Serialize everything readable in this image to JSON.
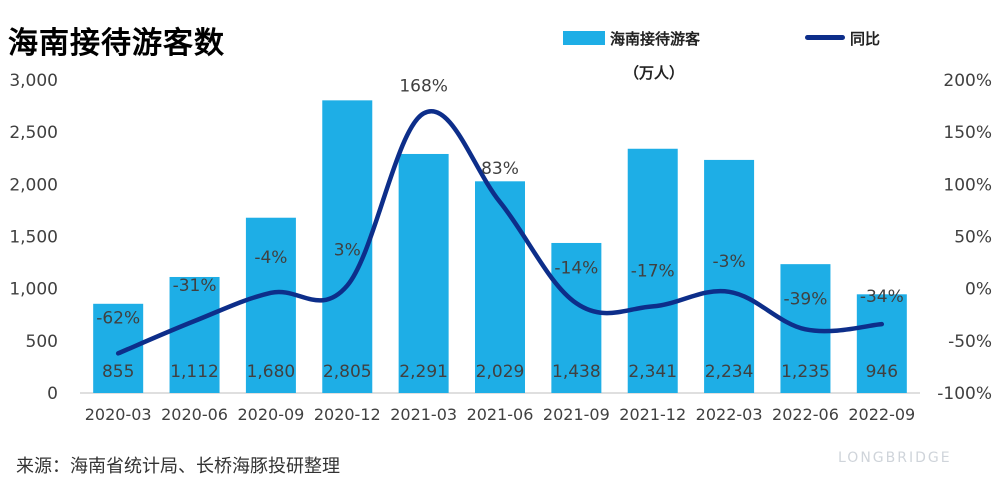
{
  "title": "海南接待游客数",
  "source": "来源：海南省统计局、长桥海豚投研整理",
  "watermark_logo": "LONGBRIDGE",
  "legend": {
    "bar_label": "海南接待游客",
    "bar_unit": "（万人）",
    "line_label": "同比"
  },
  "colors": {
    "bar": "#1EAEE6",
    "line": "#0D2E8A",
    "axis": "#BFBFBF",
    "text": "#404040"
  },
  "chart_data": {
    "type": "bar",
    "categories": [
      "2020-03",
      "2020-06",
      "2020-09",
      "2020-12",
      "2021-03",
      "2021-06",
      "2021-09",
      "2021-12",
      "2022-03",
      "2022-06",
      "2022-09"
    ],
    "series": [
      {
        "name": "海南接待游客",
        "type": "bar",
        "axis": "left",
        "values": [
          855,
          1112,
          1680,
          2805,
          2291,
          2029,
          1438,
          2341,
          2234,
          1235,
          946
        ],
        "labels": [
          "855",
          "1,112",
          "1,680",
          "2,805",
          "2,291",
          "2,029",
          "1,438",
          "2,341",
          "2,234",
          "1,235",
          "946"
        ]
      },
      {
        "name": "同比",
        "type": "line",
        "axis": "right",
        "values": [
          -62,
          -31,
          -4,
          3,
          168,
          83,
          -14,
          -17,
          -3,
          -39,
          -34
        ],
        "labels": [
          "-62%",
          "-31%",
          "-4%",
          "3%",
          "168%",
          "83%",
          "-14%",
          "-17%",
          "-3%",
          "-39%",
          "-34%"
        ]
      }
    ],
    "y_left": {
      "ylim": [
        0,
        3000
      ],
      "ticks": [
        0,
        500,
        1000,
        1500,
        2000,
        2500,
        3000
      ],
      "tick_labels": [
        "0",
        "500",
        "1,000",
        "1,500",
        "2,000",
        "2,500",
        "3,000"
      ]
    },
    "y_right": {
      "ylim": [
        -100,
        200
      ],
      "ticks": [
        -100,
        -50,
        0,
        50,
        100,
        150,
        200
      ],
      "tick_labels": [
        "-100%",
        "-50%",
        "0%",
        "50%",
        "100%",
        "150%",
        "200%"
      ]
    },
    "grid": false,
    "legend_position": "top-right"
  }
}
